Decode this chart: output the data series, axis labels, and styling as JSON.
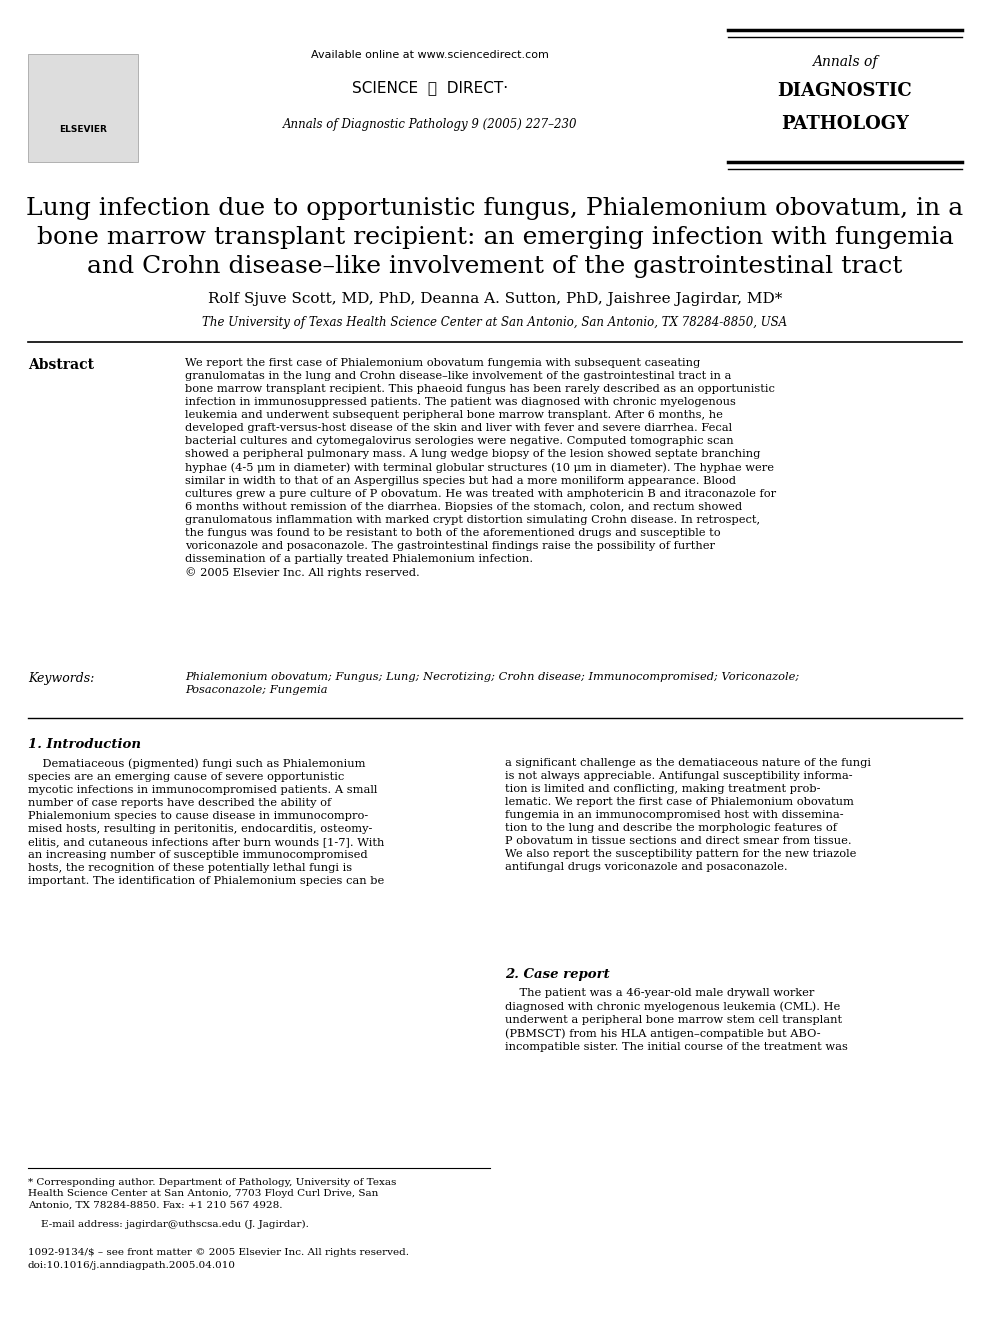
{
  "bg_color": "#ffffff",
  "header_available": "Available online at www.sciencedirect.com",
  "header_sciencedirect": "SCIENCE  ⓐ  DIRECT·",
  "header_journal_italic": "Annals of Diagnostic Pathology 9 (2005) 227–230",
  "journal_box_line1": "Annals of",
  "journal_box_line2": "DIAGNOSTIC",
  "journal_box_line3": "PATHOLOGY",
  "title_line1": "Lung infection due to opportunistic fungus, Phialemonium obovatum, in a",
  "title_line2": "bone marrow transplant recipient: an emerging infection with fungemia",
  "title_line3": "and Crohn disease–like involvement of the gastrointestinal tract",
  "authors": "Rolf Sjuve Scott, MD, PhD, Deanna A. Sutton, PhD, Jaishree Jagirdar, MD*",
  "affiliation": "The University of Texas Health Science Center at San Antonio, San Antonio, TX 78284-8850, USA",
  "abstract_label": "Abstract",
  "abstract_text": "We report the first case of Phialemonium obovatum fungemia with subsequent caseating\ngranulomatas in the lung and Crohn disease–like involvement of the gastrointestinal tract in a\nbone marrow transplant recipient. This phaeoid fungus has been rarely described as an opportunistic\ninfection in immunosuppressed patients. The patient was diagnosed with chronic myelogenous\nleukemia and underwent subsequent peripheral bone marrow transplant. After 6 months, he\ndeveloped graft-versus-host disease of the skin and liver with fever and severe diarrhea. Fecal\nbacterial cultures and cytomegalovirus serologies were negative. Computed tomographic scan\nshowed a peripheral pulmonary mass. A lung wedge biopsy of the lesion showed septate branching\nhyphae (4-5 μm in diameter) with terminal globular structures (10 μm in diameter). The hyphae were\nsimilar in width to that of an Aspergillus species but had a more moniliform appearance. Blood\ncultures grew a pure culture of P obovatum. He was treated with amphotericin B and itraconazole for\n6 months without remission of the diarrhea. Biopsies of the stomach, colon, and rectum showed\ngranulomatous inflammation with marked crypt distortion simulating Crohn disease. In retrospect,\nthe fungus was found to be resistant to both of the aforementioned drugs and susceptible to\nvoriconazole and posaconazole. The gastrointestinal findings raise the possibility of further\ndissemination of a partially treated Phialemonium infection.\n© 2005 Elsevier Inc. All rights reserved.",
  "keywords_label": "Keywords:",
  "keywords_text": "Phialemonium obovatum; Fungus; Lung; Necrotizing; Crohn disease; Immunocompromised; Voriconazole;\nPosaconazole; Fungemia",
  "section1_title": "1. Introduction",
  "section1_col1": "    Dematiaceous (pigmented) fungi such as Phialemonium\nspecies are an emerging cause of severe opportunistic\nmycotic infections in immunocompromised patients. A small\nnumber of case reports have described the ability of\nPhialemonium species to cause disease in immunocompro-\nmised hosts, resulting in peritonitis, endocarditis, osteomy-\nelitis, and cutaneous infections after burn wounds [1-7]. With\nan increasing number of susceptible immunocompromised\nhosts, the recognition of these potentially lethal fungi is\nimportant. The identification of Phialemonium species can be",
  "section1_col2": "a significant challenge as the dematiaceous nature of the fungi\nis not always appreciable. Antifungal susceptibility informa-\ntion is limited and conflicting, making treatment prob-\nlematic. We report the first case of Phialemonium obovatum\nfungemia in an immunocompromised host with dissemina-\ntion to the lung and describe the morphologic features of\nP obovatum in tissue sections and direct smear from tissue.\nWe also report the susceptibility pattern for the new triazole\nantifungal drugs voriconazole and posaconazole.",
  "section2_title": "2. Case report",
  "section2_col2": "    The patient was a 46-year-old male drywall worker\ndiagnosed with chronic myelogenous leukemia (CML). He\nunderwent a peripheral bone marrow stem cell transplant\n(PBMSCT) from his HLA antigen–compatible but ABO-\nincompatible sister. The initial course of the treatment was",
  "footnote1": "* Corresponding author. Department of Pathology, University of Texas\nHealth Science Center at San Antonio, 7703 Floyd Curl Drive, San\nAntonio, TX 78284-8850. Fax: +1 210 567 4928.",
  "footnote2": "    E-mail address: jagirdar@uthscsa.edu (J. Jagirdar).",
  "footnote3": "1092-9134/$ – see front matter © 2005 Elsevier Inc. All rights reserved.",
  "footnote4": "doi:10.1016/j.anndiagpath.2005.04.010"
}
